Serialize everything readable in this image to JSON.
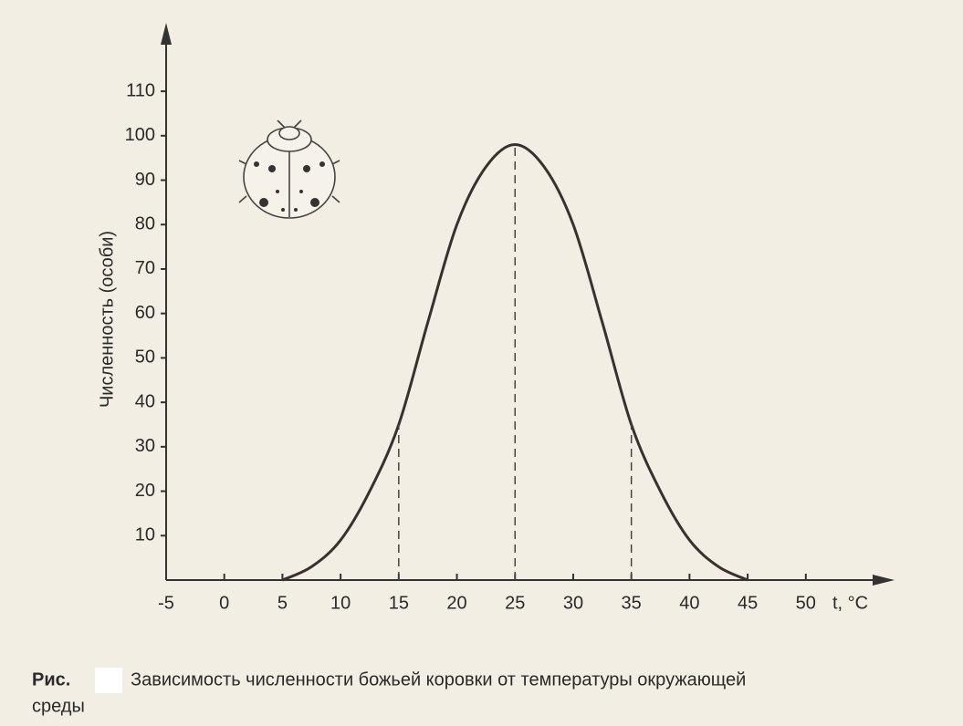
{
  "chart_data": {
    "type": "line",
    "y_label": "Численность (особи)",
    "x_label": "t, °C",
    "caption_prefix": "Рис.",
    "caption": "Зависимость численности божьей коровки от температуры окружающей",
    "caption_cont": "среды",
    "x": [
      5,
      7.5,
      10,
      12.5,
      15,
      17.5,
      20,
      22.5,
      25,
      27.5,
      30,
      32.5,
      35,
      37.5,
      40,
      42.5,
      45
    ],
    "series": [
      {
        "color": "#3a3030",
        "values": [
          0,
          3,
          9,
          20,
          35,
          58,
          80,
          93,
          98,
          93,
          80,
          58,
          35,
          20,
          9,
          3,
          0
        ]
      }
    ],
    "guides_x": [
      15,
      25,
      35
    ],
    "xlim": [
      -5,
      57
    ],
    "xticks": [
      -5,
      0,
      5,
      10,
      15,
      20,
      25,
      30,
      35,
      40,
      45,
      50
    ],
    "ylim": [
      0,
      125
    ],
    "yticks": [
      10,
      20,
      30,
      40,
      50,
      60,
      70,
      80,
      90,
      100,
      110
    ],
    "grid": false
  }
}
